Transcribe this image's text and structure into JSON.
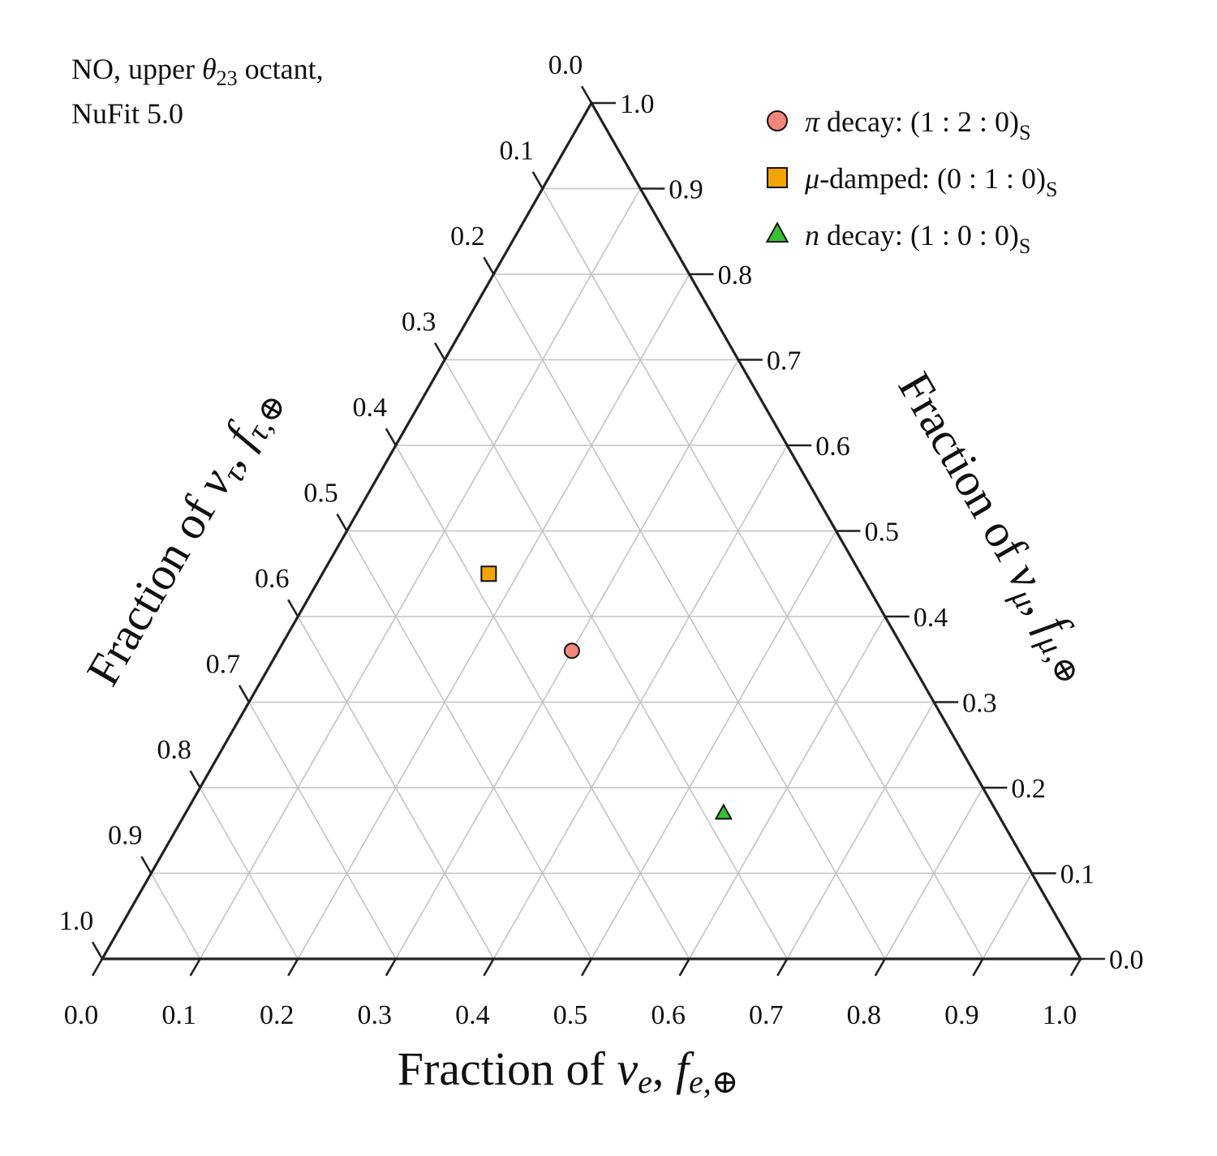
{
  "chart_data": {
    "type": "scatter",
    "subtype": "ternary",
    "annotation": {
      "line1_prefix": "NO, upper ",
      "line1_theta": "θ",
      "line1_sub": "23",
      "line1_suffix": " octant,",
      "line2": "NuFit 5.0"
    },
    "axes": {
      "bottom": {
        "label_prefix": "Fraction of ",
        "label_nu": "ν",
        "label_nu_sub": "e",
        "label_mid": ", ",
        "label_f": "f",
        "label_f_sub": "e,⊕",
        "ticks": [
          "0.0",
          "0.1",
          "0.2",
          "0.3",
          "0.4",
          "0.5",
          "0.6",
          "0.7",
          "0.8",
          "0.9",
          "1.0"
        ]
      },
      "right": {
        "label_prefix": "Fraction of ",
        "label_nu": "ν",
        "label_nu_sub": "μ",
        "label_mid": ", ",
        "label_f": "f",
        "label_f_sub": "μ,⊕",
        "ticks": [
          "0.0",
          "0.1",
          "0.2",
          "0.3",
          "0.4",
          "0.5",
          "0.6",
          "0.7",
          "0.8",
          "0.9",
          "1.0"
        ]
      },
      "left": {
        "label_prefix": "Fraction of ",
        "label_nu": "ν",
        "label_nu_sub": "τ",
        "label_mid": ", ",
        "label_f": "f",
        "label_f_sub": "τ,⊕",
        "ticks": [
          "0.0",
          "0.1",
          "0.2",
          "0.3",
          "0.4",
          "0.5",
          "0.6",
          "0.7",
          "0.8",
          "0.9",
          "1.0"
        ]
      },
      "range": [
        0,
        1
      ],
      "grid": true,
      "grid_step": 0.1
    },
    "legend_position": "top-right",
    "series": [
      {
        "name_sym": "π",
        "name_text": " decay: (1 : 2 : 0)",
        "name_sub": "S",
        "marker": "circle",
        "color": "#f4877a",
        "point": {
          "f_e": 0.3,
          "f_mu": 0.36,
          "f_tau": 0.34
        }
      },
      {
        "name_sym": "μ",
        "name_text": "-damped: (0 : 1 : 0)",
        "name_sub": "S",
        "marker": "square",
        "color": "#f5a300",
        "point": {
          "f_e": 0.17,
          "f_mu": 0.45,
          "f_tau": 0.38
        }
      },
      {
        "name_sym": "n",
        "name_text": " decay: (1 : 0 : 0)",
        "name_sub": "S",
        "marker": "triangle",
        "color": "#33c233",
        "point": {
          "f_e": 0.55,
          "f_mu": 0.17,
          "f_tau": 0.28
        }
      }
    ],
    "colors": {
      "frame": "#222222",
      "grid": "#c4c4c4",
      "marker_edge": "#111111"
    }
  }
}
